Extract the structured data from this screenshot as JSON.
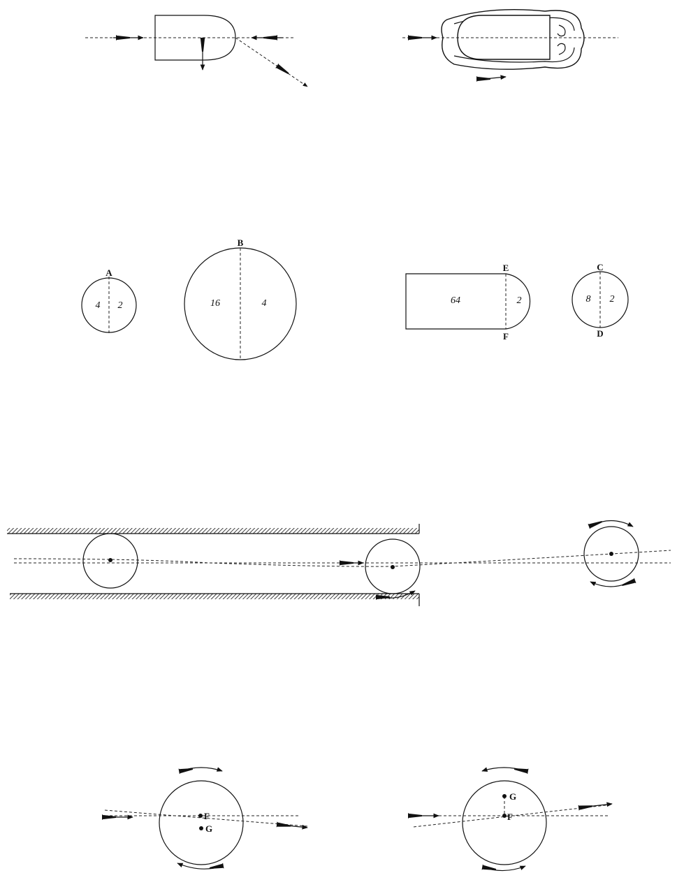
{
  "figure_1": {
    "name": "projectile-deflection"
  },
  "figure_2": {
    "name": "projectile-with-air-disturbance"
  },
  "figure_3": {
    "circle_a": {
      "label": "A",
      "left_value": "4",
      "right_value": "2"
    },
    "circle_b": {
      "label": "B",
      "left_value": "16",
      "right_value": "4"
    },
    "elongated": {
      "top_label": "E",
      "bottom_label": "F",
      "body_value": "64",
      "head_value": "2"
    },
    "circle_c": {
      "top_label": "C",
      "bottom_label": "D",
      "left_value": "8",
      "right_value": "2"
    }
  },
  "figure_4": {
    "name": "ball-leaving-barrel"
  },
  "figure_5": {
    "left": {
      "point_upper": "F",
      "point_lower": "G"
    },
    "right": {
      "point_upper": "G",
      "point_lower": "F"
    }
  },
  "icons": [
    "arrow-icon",
    "feathered-arrow-icon",
    "rotation-arrow-icon"
  ]
}
